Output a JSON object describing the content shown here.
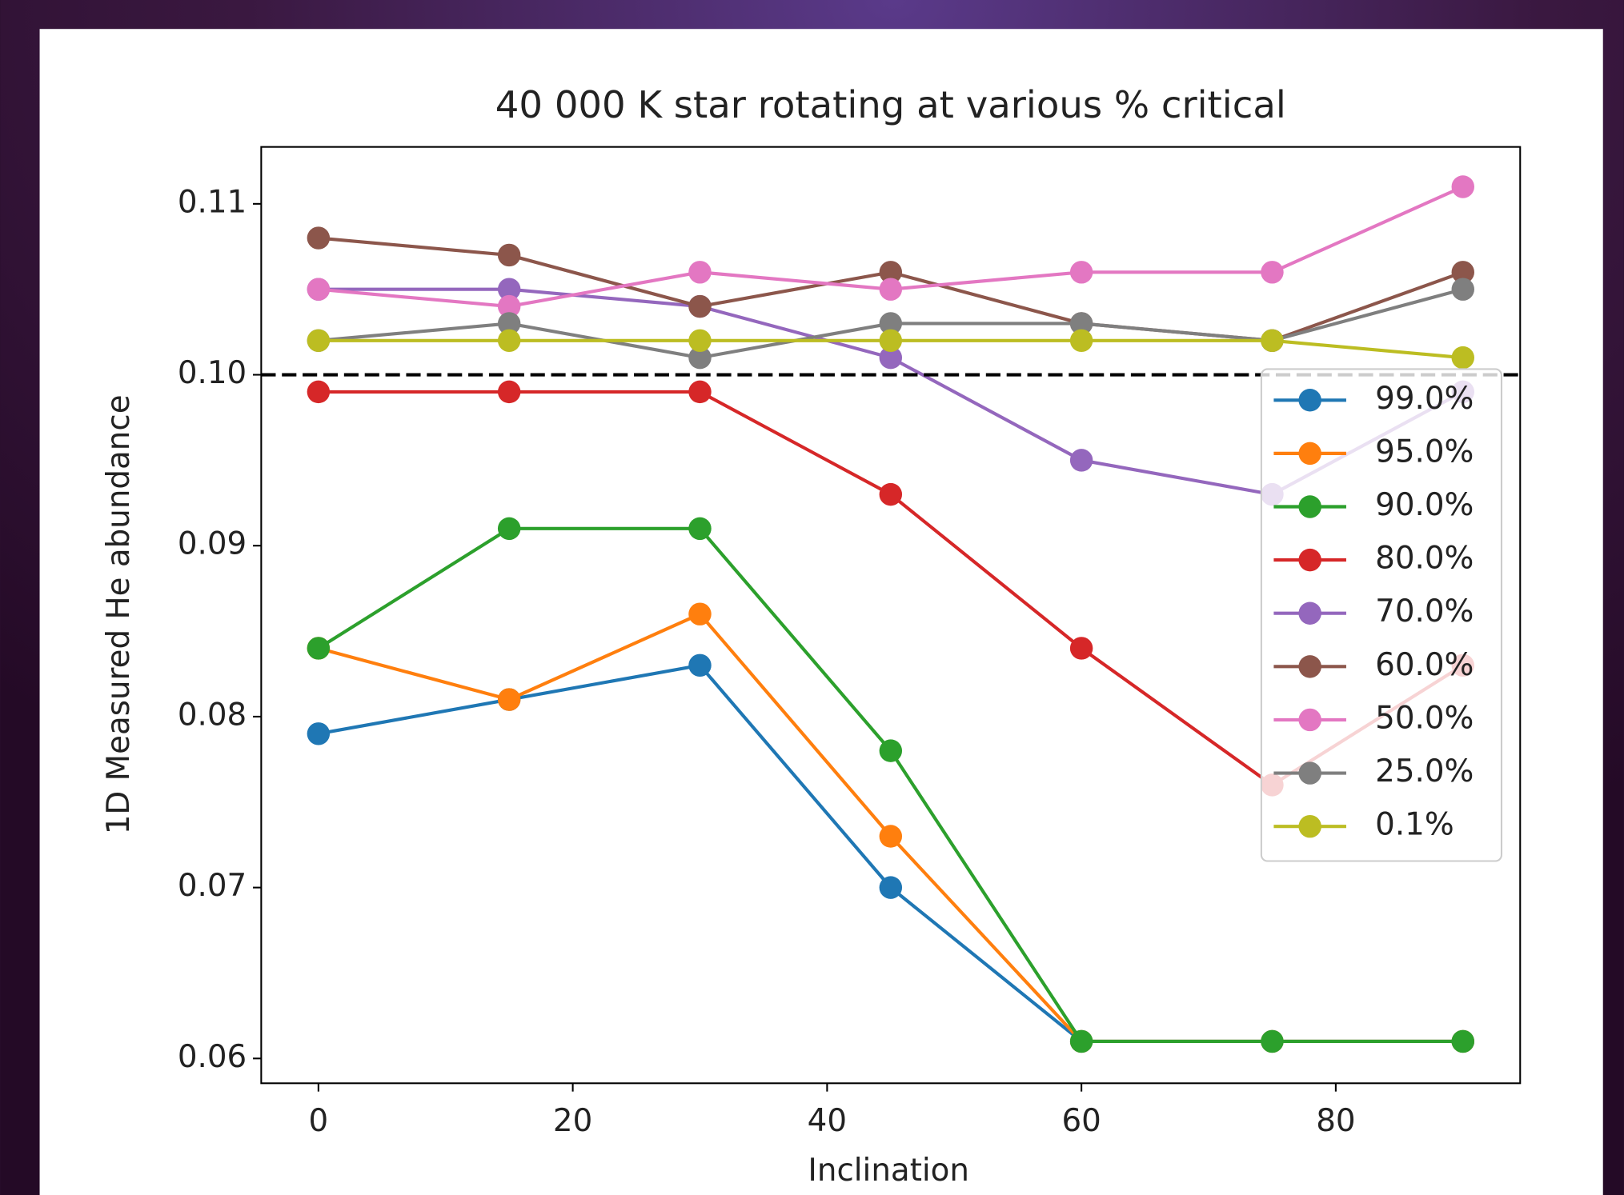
{
  "chart_data": {
    "type": "line",
    "title": "40 000 K star rotating at various % critical",
    "xlabel": "Inclination",
    "ylabel": "1D Measured He abundance",
    "x": [
      0,
      15,
      30,
      45,
      60,
      75,
      90
    ],
    "xlim": [
      -4.5,
      94.5
    ],
    "ylim": [
      0.05855,
      0.11333
    ],
    "xticks": [
      0,
      20,
      40,
      60,
      80
    ],
    "yticks": [
      0.06,
      0.07,
      0.08,
      0.09,
      {
        "value": 0.1,
        "label": "0.10"
      },
      0.11
    ],
    "hline": 0.1,
    "legend": "right",
    "series": [
      {
        "name": "99.0%",
        "color": "#1f77b4",
        "values": [
          0.079,
          0.081,
          0.083,
          0.07,
          0.061,
          0.061,
          0.061
        ]
      },
      {
        "name": "95.0%",
        "color": "#ff7f0e",
        "values": [
          0.084,
          0.081,
          0.086,
          0.073,
          0.061,
          0.061,
          0.061
        ]
      },
      {
        "name": "90.0%",
        "color": "#2ca02c",
        "values": [
          0.084,
          0.091,
          0.091,
          0.078,
          0.061,
          0.061,
          0.061
        ]
      },
      {
        "name": "80.0%",
        "color": "#d62728",
        "values": [
          0.099,
          0.099,
          0.099,
          0.093,
          0.084,
          0.076,
          0.083
        ]
      },
      {
        "name": "70.0%",
        "color": "#9467bd",
        "values": [
          0.105,
          0.105,
          0.104,
          0.101,
          0.095,
          0.093,
          0.099
        ]
      },
      {
        "name": "60.0%",
        "color": "#8c564b",
        "values": [
          0.108,
          0.107,
          0.104,
          0.106,
          0.103,
          0.102,
          0.106
        ]
      },
      {
        "name": "50.0%",
        "color": "#e377c2",
        "values": [
          0.105,
          0.104,
          0.106,
          0.105,
          0.106,
          0.106,
          0.111
        ]
      },
      {
        "name": "25.0%",
        "color": "#7f7f7f",
        "values": [
          0.102,
          0.103,
          0.101,
          0.103,
          0.103,
          0.102,
          0.105
        ]
      },
      {
        "name": "0.1%",
        "color": "#bcbd22",
        "values": [
          0.102,
          0.102,
          0.102,
          0.102,
          0.102,
          0.102,
          0.101
        ]
      }
    ]
  }
}
